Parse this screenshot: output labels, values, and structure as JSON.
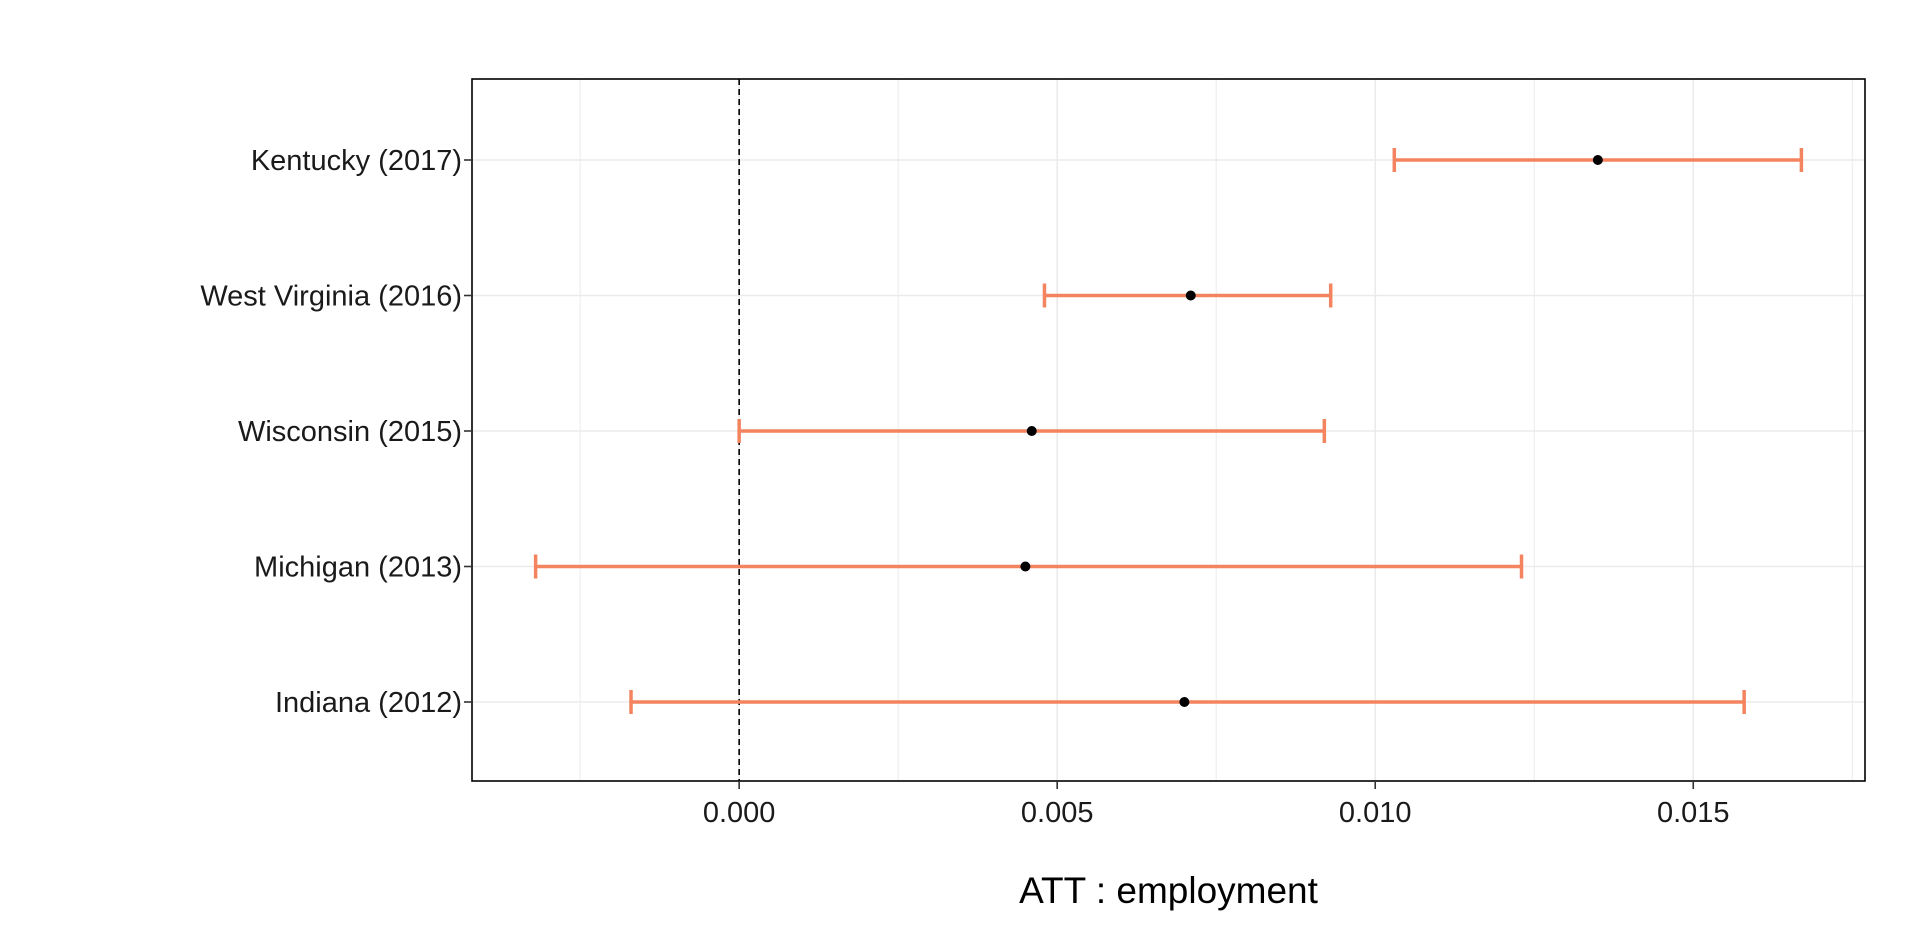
{
  "chart_data": {
    "type": "errorbar",
    "title": "",
    "xlabel": "ATT : employment",
    "ylabel": "",
    "xlim": [
      -0.0042,
      0.0177
    ],
    "x_ticks": [
      0.0,
      0.005,
      0.01,
      0.015
    ],
    "x_tick_labels": [
      "0.000",
      "0.005",
      "0.010",
      "0.015"
    ],
    "reference_line": {
      "x": 0.0,
      "style": "dashed"
    },
    "grid": true,
    "categories": [
      "Kentucky (2017)",
      "West Virginia (2016)",
      "Wisconsin (2015)",
      "Michigan (2013)",
      "Indiana (2012)"
    ],
    "estimates": [
      0.0135,
      0.0071,
      0.0046,
      0.0045,
      0.007
    ],
    "lower": [
      0.0103,
      0.0048,
      0.0,
      -0.0032,
      -0.0017
    ],
    "upper": [
      0.0167,
      0.0093,
      0.0092,
      0.0123,
      0.0158
    ],
    "colors": {
      "errorbar": "#F4845F",
      "point": "#000000",
      "gridline": "#EBEBEB",
      "panel_border": "#000000"
    }
  }
}
